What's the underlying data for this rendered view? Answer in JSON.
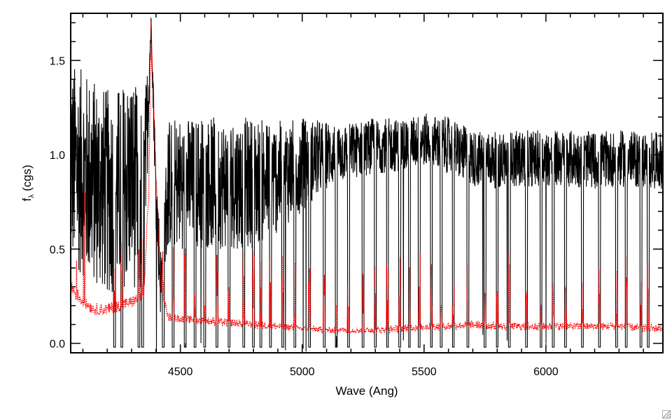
{
  "chart_data": {
    "type": "line",
    "title": "",
    "xlabel": "Wave (Ang)",
    "ylabel_main": "f",
    "ylabel_sub": "λ",
    "ylabel_unit": " (cgs)",
    "xlim": [
      4050,
      6480
    ],
    "ylim": [
      -0.05,
      1.75
    ],
    "xticks": [
      4500,
      5000,
      5500,
      6000
    ],
    "xtick_labels": [
      "4500",
      "5000",
      "5500",
      "6000"
    ],
    "yticks": [
      0.0,
      0.5,
      1.0,
      1.5
    ],
    "ytick_labels": [
      "0.0",
      "0.5",
      "1.0",
      "1.5"
    ],
    "grid": false,
    "legend": "none",
    "series": [
      {
        "style": "solid",
        "color": "#000000",
        "x": [
          4050,
          4100,
          4150,
          4200,
          4250,
          4300,
          4350,
          4380,
          4400,
          4420,
          4450,
          4500,
          4600,
          4700,
          4800,
          4900,
          5000,
          5100,
          5200,
          5300,
          5400,
          5500,
          5600,
          5700,
          5800,
          5900,
          6000,
          6100,
          6200,
          6300,
          6400,
          6480
        ],
        "y": [
          0.95,
          0.9,
          0.85,
          0.8,
          0.82,
          0.88,
          0.7,
          1.7,
          0.8,
          0.3,
          0.85,
          0.85,
          0.85,
          0.85,
          0.85,
          0.88,
          0.95,
          1.0,
          1.02,
          1.05,
          1.05,
          1.08,
          1.05,
          0.98,
          0.97,
          0.98,
          0.98,
          0.98,
          0.97,
          0.98,
          0.97,
          0.97
        ],
        "noise": [
          0.55,
          0.55,
          0.55,
          0.55,
          0.55,
          0.55,
          0.55,
          0.05,
          0.2,
          0.2,
          0.35,
          0.35,
          0.35,
          0.35,
          0.35,
          0.3,
          0.25,
          0.18,
          0.15,
          0.15,
          0.14,
          0.14,
          0.15,
          0.15,
          0.15,
          0.15,
          0.15,
          0.15,
          0.15,
          0.15,
          0.15,
          0.15
        ]
      },
      {
        "style": "dotted",
        "color": "#ff0000",
        "x": [
          4050,
          4100,
          4150,
          4200,
          4250,
          4300,
          4350,
          4370,
          4380,
          4400,
          4420,
          4450,
          4500,
          4600,
          4700,
          4800,
          4900,
          5000,
          5100,
          5200,
          5300,
          5400,
          5500,
          5600,
          5700,
          5800,
          5900,
          6000,
          6100,
          6200,
          6300,
          6400,
          6480
        ],
        "y": [
          0.3,
          0.22,
          0.18,
          0.18,
          0.2,
          0.22,
          0.25,
          0.8,
          1.7,
          0.9,
          0.3,
          0.14,
          0.13,
          0.12,
          0.11,
          0.1,
          0.09,
          0.08,
          0.07,
          0.07,
          0.07,
          0.08,
          0.09,
          0.09,
          0.1,
          0.09,
          0.09,
          0.09,
          0.09,
          0.09,
          0.09,
          0.08,
          0.08
        ],
        "noise": [
          0.04,
          0.03,
          0.03,
          0.03,
          0.03,
          0.03,
          0.03,
          0.05,
          0.05,
          0.05,
          0.03,
          0.02,
          0.02,
          0.02,
          0.02,
          0.02,
          0.02,
          0.015,
          0.015,
          0.015,
          0.015,
          0.02,
          0.02,
          0.02,
          0.02,
          0.02,
          0.02,
          0.02,
          0.02,
          0.02,
          0.02,
          0.02,
          0.02
        ]
      }
    ],
    "dropouts": [
      4230,
      4260,
      4330,
      4345,
      4430,
      4470,
      4520,
      4560,
      4600,
      4650,
      4700,
      4760,
      4800,
      4830,
      4870,
      4920,
      4970,
      5030,
      5090,
      5140,
      5190,
      5250,
      5300,
      5350,
      5400,
      5440,
      5480,
      5530,
      5570,
      5620,
      5680,
      5750,
      5800,
      5850,
      5920,
      5980,
      6030,
      6080,
      6150,
      6220,
      6290,
      6330,
      6390,
      6420
    ]
  },
  "icons": {
    "resize_grip": "resize-grip-icon"
  }
}
